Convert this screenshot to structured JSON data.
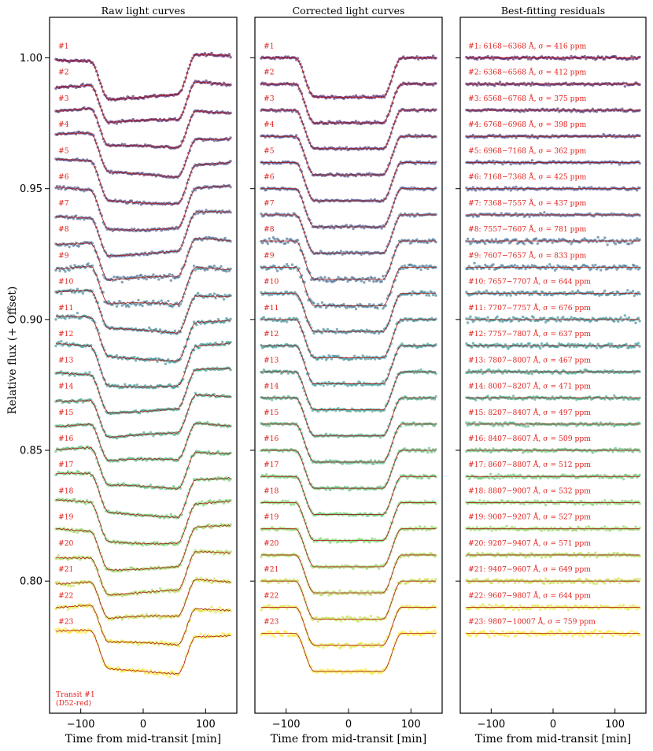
{
  "chart_data": [
    {
      "type": "scatter",
      "title": "Raw light curves",
      "xlabel": "Time from mid-transit [min]",
      "ylabel": "Relative flux (+ Offset)",
      "xlim": [
        -150,
        150
      ],
      "ylim": [
        0.7495,
        1.0155
      ],
      "xticks": [
        -100,
        0,
        100
      ],
      "yticks": [
        0.8,
        0.85,
        0.9,
        0.95,
        1.0
      ],
      "ytick_labels": [
        "0.80",
        "0.85",
        "0.90",
        "0.95",
        "1.00"
      ],
      "transit": {
        "t_half_total": 85,
        "t_half_flat": 55,
        "time_range": [
          -140,
          140
        ],
        "points_per_curve": 130
      },
      "offset_step": 0.01,
      "annotation": [
        "Transit #1",
        "(D52-red)"
      ],
      "series": [
        {
          "label": "#1",
          "baseline": 1.0,
          "depth": 0.015,
          "scatter_ppm": 416
        },
        {
          "label": "#2",
          "baseline": 0.99,
          "depth": 0.0148,
          "scatter_ppm": 412
        },
        {
          "label": "#3",
          "baseline": 0.98,
          "depth": 0.0147,
          "scatter_ppm": 375
        },
        {
          "label": "#4",
          "baseline": 0.97,
          "depth": 0.0147,
          "scatter_ppm": 398
        },
        {
          "label": "#5",
          "baseline": 0.96,
          "depth": 0.0146,
          "scatter_ppm": 362
        },
        {
          "label": "#6",
          "baseline": 0.95,
          "depth": 0.0146,
          "scatter_ppm": 425
        },
        {
          "label": "#7",
          "baseline": 0.94,
          "depth": 0.0146,
          "scatter_ppm": 437
        },
        {
          "label": "#8",
          "baseline": 0.93,
          "depth": 0.0147,
          "scatter_ppm": 781
        },
        {
          "label": "#9",
          "baseline": 0.92,
          "depth": 0.0148,
          "scatter_ppm": 833
        },
        {
          "label": "#10",
          "baseline": 0.91,
          "depth": 0.0146,
          "scatter_ppm": 644
        },
        {
          "label": "#11",
          "baseline": 0.9,
          "depth": 0.0146,
          "scatter_ppm": 676
        },
        {
          "label": "#12",
          "baseline": 0.89,
          "depth": 0.0146,
          "scatter_ppm": 637
        },
        {
          "label": "#13",
          "baseline": 0.88,
          "depth": 0.0145,
          "scatter_ppm": 467
        },
        {
          "label": "#14",
          "baseline": 0.87,
          "depth": 0.0145,
          "scatter_ppm": 471
        },
        {
          "label": "#15",
          "baseline": 0.86,
          "depth": 0.0145,
          "scatter_ppm": 497
        },
        {
          "label": "#16",
          "baseline": 0.85,
          "depth": 0.0145,
          "scatter_ppm": 509
        },
        {
          "label": "#17",
          "baseline": 0.84,
          "depth": 0.0145,
          "scatter_ppm": 512
        },
        {
          "label": "#18",
          "baseline": 0.83,
          "depth": 0.0145,
          "scatter_ppm": 532
        },
        {
          "label": "#19",
          "baseline": 0.82,
          "depth": 0.0145,
          "scatter_ppm": 527
        },
        {
          "label": "#20",
          "baseline": 0.81,
          "depth": 0.0145,
          "scatter_ppm": 571
        },
        {
          "label": "#21",
          "baseline": 0.8,
          "depth": 0.0145,
          "scatter_ppm": 649
        },
        {
          "label": "#22",
          "baseline": 0.79,
          "depth": 0.0145,
          "scatter_ppm": 644
        },
        {
          "label": "#23",
          "baseline": 0.78,
          "depth": 0.0145,
          "scatter_ppm": 759
        }
      ]
    },
    {
      "type": "scatter",
      "title": "Corrected light curves",
      "xlabel": "Time from mid-transit [min]",
      "xlim": [
        -150,
        150
      ],
      "ylim": [
        0.7495,
        1.0155
      ],
      "xticks": [
        -100,
        0,
        100
      ],
      "note": "Same 23 spectroscopic channels (#1-#23) as the raw panel after systematics correction, baselines 1.000 to 0.780 in steps of 0.01"
    },
    {
      "type": "scatter",
      "title": "Best-fitting residuals",
      "xlabel": "Time from mid-transit [min]",
      "xlim": [
        -150,
        150
      ],
      "ylim": [
        0.7495,
        1.0155
      ],
      "xticks": [
        -100,
        0,
        100
      ],
      "residual_labels": [
        "#1: 6168−6368 Å, σ = 416 ppm",
        "#2: 6368−6568 Å, σ = 412 ppm",
        "#3: 6568−6768 Å, σ = 375 ppm",
        "#4: 6768−6968 Å, σ = 398 ppm",
        "#5: 6968−7168 Å, σ = 362 ppm",
        "#6: 7168−7368 Å, σ = 425 ppm",
        "#7: 7368−7557 Å, σ = 437 ppm",
        "#8: 7557−7607 Å, σ = 781 ppm",
        "#9: 7607−7657 Å, σ = 833 ppm",
        "#10: 7657−7707 Å, σ = 644 ppm",
        "#11: 7707−7757 Å, σ = 676 ppm",
        "#12: 7757−7807 Å, σ = 637 ppm",
        "#13: 7807−8007 Å, σ = 467 ppm",
        "#14: 8007−8207 Å, σ = 471 ppm",
        "#15: 8207−8407 Å, σ = 497 ppm",
        "#16: 8407−8607 Å, σ = 509 ppm",
        "#17: 8607−8807 Å, σ = 512 ppm",
        "#18: 8807−9007 Å, σ = 532 ppm",
        "#19: 9007−9207 Å, σ = 527 ppm",
        "#20: 9207−9407 Å, σ = 571 ppm",
        "#21: 9407−9607 Å, σ = 649 ppm",
        "#22: 9607−9807 Å, σ = 644 ppm",
        "#23: 9807−10007 Å, σ = 759 ppm"
      ]
    }
  ],
  "colors": {
    "viridis_stops": [
      "#46085c",
      "#3b528b",
      "#21908d",
      "#5dc863",
      "#fde725"
    ],
    "model_line": "#e0201b",
    "label_text": "#e0201b",
    "frame": "#000000"
  }
}
